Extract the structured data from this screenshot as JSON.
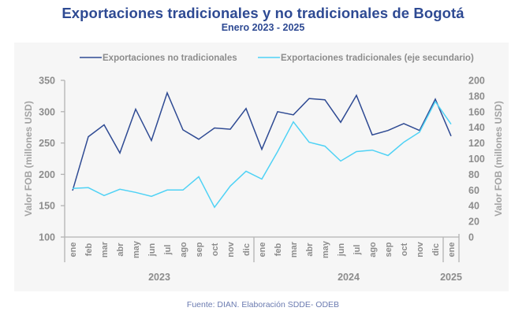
{
  "chart_data": {
    "type": "line",
    "title": "Exportaciones tradicionales y no tradicionales de Bogotá",
    "subtitle": "Enero 2023 - 2025",
    "source": "Fuente: DIAN. Elaboración SDDE- ODEB",
    "categories": [
      "ene",
      "feb",
      "mar",
      "abr",
      "may",
      "jun",
      "jul",
      "ago",
      "sep",
      "oct",
      "nov",
      "dic",
      "ene",
      "feb",
      "mar",
      "abr",
      "may",
      "jun",
      "jul",
      "ago",
      "sep",
      "oct",
      "nov",
      "dic",
      "ene"
    ],
    "groups": [
      {
        "label": "2023",
        "count": 12
      },
      {
        "label": "2024",
        "count": 12
      },
      {
        "label": "2025",
        "count": 1
      }
    ],
    "ylabel": "Valor FOB (millones USD)",
    "ylabel_secondary": "Valor FOB (millones USD)",
    "ylim": [
      100,
      350
    ],
    "yticks": [
      100,
      150,
      200,
      250,
      300,
      350
    ],
    "ylim_secondary": [
      0,
      200
    ],
    "yticks_secondary": [
      0,
      20,
      40,
      60,
      80,
      100,
      120,
      140,
      160,
      180,
      200
    ],
    "legend_position": "top",
    "grid": false,
    "series": [
      {
        "name": "Exportaciones no tradicionales",
        "axis": "primary",
        "color": "#2e4a93",
        "values": [
          174,
          260,
          279,
          234,
          304,
          254,
          330,
          271,
          256,
          274,
          272,
          305,
          240,
          300,
          295,
          321,
          319,
          283,
          326,
          263,
          270,
          281,
          270,
          320,
          261
        ]
      },
      {
        "name": "Exportaciones tradicionales (eje secundario)",
        "axis": "secondary",
        "color": "#4fd2f5",
        "values": [
          62,
          63,
          53,
          61,
          57,
          52,
          60,
          60,
          77,
          38,
          65,
          84,
          74,
          109,
          147,
          121,
          116,
          97,
          109,
          111,
          104,
          121,
          134,
          173,
          144
        ]
      }
    ]
  }
}
